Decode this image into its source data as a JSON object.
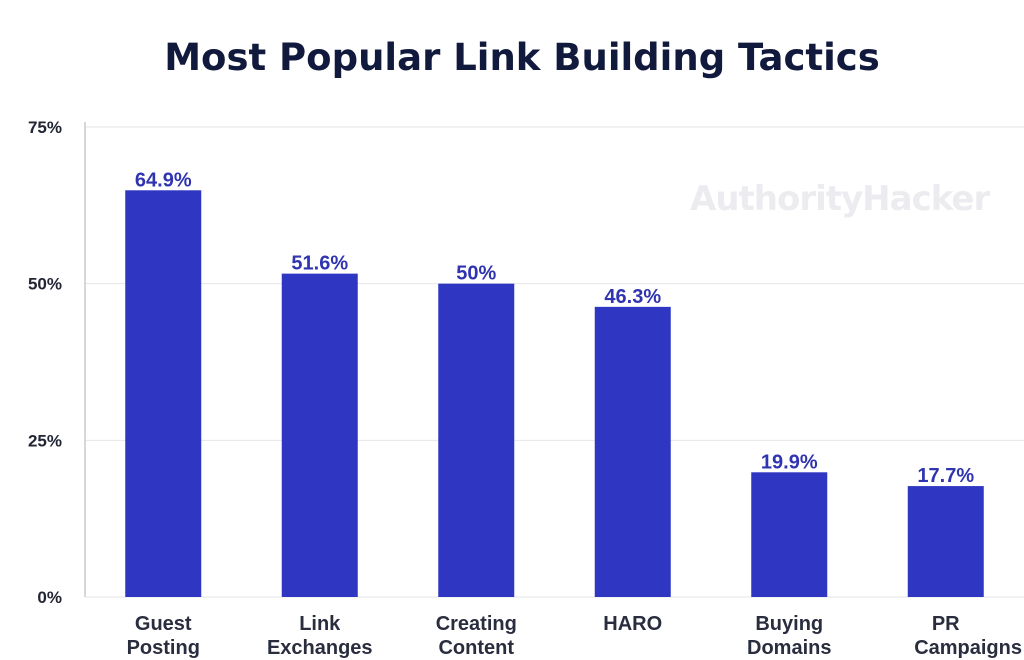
{
  "watermark": "AuthorityHacker",
  "colors": {
    "bar": "#2f36c2",
    "value_label": "#3034b0",
    "title": "#111a3c"
  },
  "chart_data": {
    "type": "bar",
    "title": "Most Popular Link Building Tactics",
    "xlabel": "",
    "ylabel": "",
    "ylim": [
      0,
      75
    ],
    "yticks": [
      0,
      25,
      50,
      75
    ],
    "ytick_labels": [
      "0%",
      "25%",
      "50%",
      "75%"
    ],
    "grid": true,
    "categories": [
      [
        "Guest",
        "Posting"
      ],
      [
        "Link",
        "Exchanges"
      ],
      [
        "Creating",
        "Content"
      ],
      [
        "HARO"
      ],
      [
        "Buying",
        "Domains"
      ],
      [
        "PR",
        "Campaigns"
      ]
    ],
    "values": [
      64.9,
      51.6,
      50,
      46.3,
      19.9,
      17.7
    ],
    "value_labels": [
      "64.9%",
      "51.6%",
      "50%",
      "46.3%",
      "19.9%",
      "17.7%"
    ]
  }
}
